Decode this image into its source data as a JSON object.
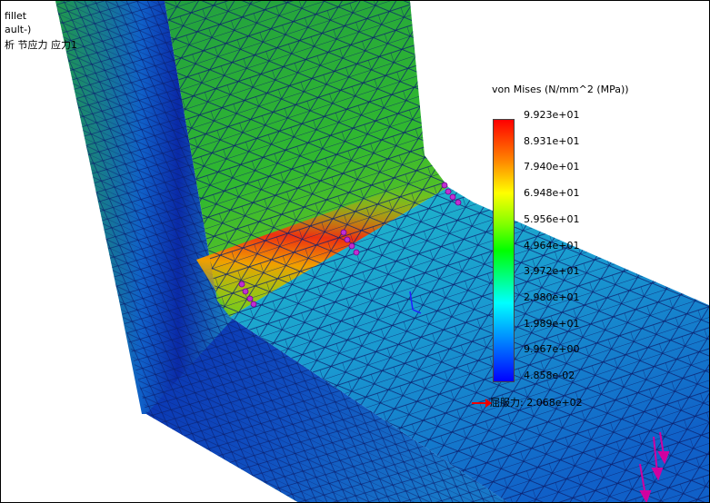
{
  "info": {
    "line1": "fillet",
    "line2": "ault-)",
    "line3": "析 节应力 应力1"
  },
  "legend": {
    "title": "von Mises (N/mm^2 (MPa))",
    "labels": [
      "9.923e+01",
      "8.931e+01",
      "7.940e+01",
      "6.948e+01",
      "5.956e+01",
      "4.964e+01",
      "3.972e+01",
      "2.980e+01",
      "1.989e+01",
      "9.967e+00",
      "4.858e-02"
    ],
    "colors": {
      "max": "#ff0000",
      "mid": "#00ff00",
      "min": "#0000ff"
    }
  },
  "yield": {
    "label": "屈服力: 2.068e+02",
    "arrow_color": "#e00000"
  },
  "icons": [
    "fixture-icon",
    "load-arrow-icon",
    "triad-icon"
  ]
}
